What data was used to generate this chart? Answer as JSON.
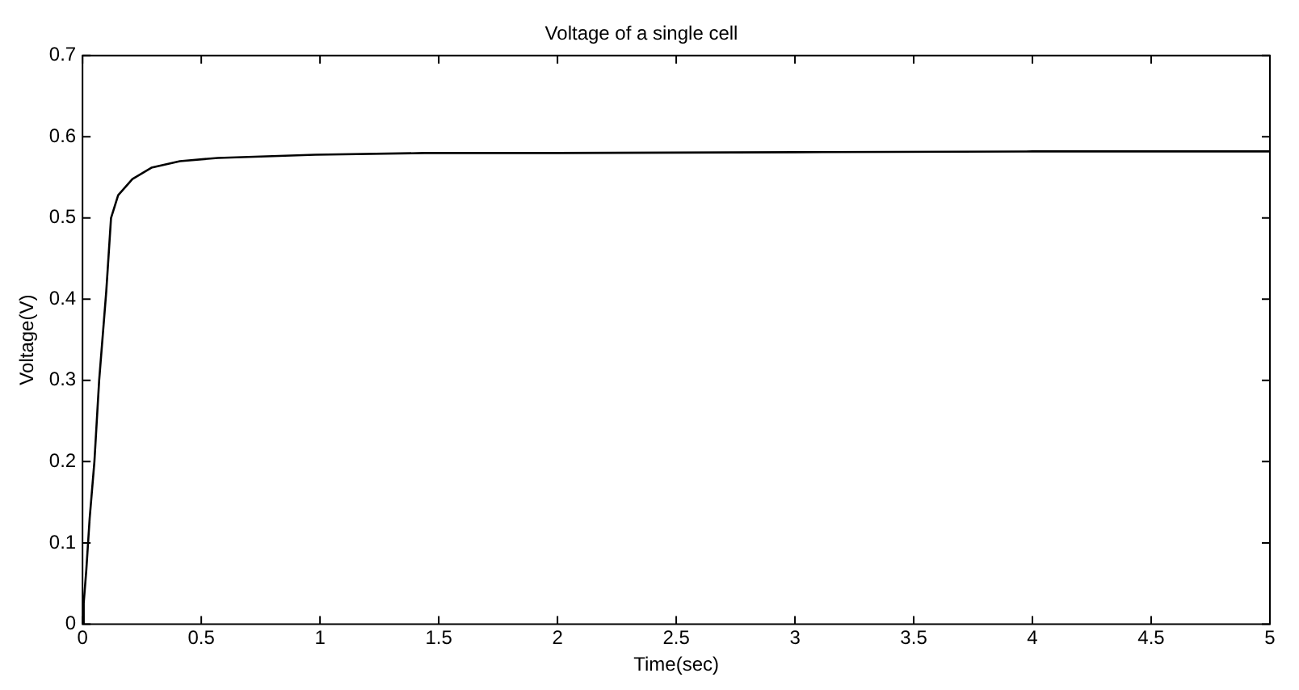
{
  "chart_data": {
    "type": "line",
    "title": "Voltage of a single cell",
    "xlabel": "Time(sec)",
    "ylabel": "Voltage(V)",
    "series": [
      {
        "color": "#000000",
        "x": [
          0,
          0.005,
          0.016,
          0.03,
          0.05,
          0.07,
          0.1,
          0.12,
          0.15,
          0.21,
          0.29,
          0.41,
          0.57,
          0.98,
          1.44,
          2,
          3,
          4,
          5
        ],
        "values": [
          0,
          0.026,
          0.067,
          0.13,
          0.2,
          0.3,
          0.41,
          0.5,
          0.528,
          0.548,
          0.562,
          0.57,
          0.574,
          0.578,
          0.58,
          0.58,
          0.581,
          0.582,
          0.582
        ]
      }
    ],
    "xlim": [
      0,
      5
    ],
    "xticks": [
      0,
      0.5,
      1,
      1.5,
      2,
      2.5,
      3,
      3.5,
      4,
      4.5,
      5
    ],
    "ylim": [
      0,
      0.7
    ],
    "yticks": [
      0,
      0.1,
      0.2,
      0.3,
      0.4,
      0.5,
      0.6,
      0.7
    ],
    "grid": false,
    "legend": false,
    "marker": "none",
    "line_style": "solid"
  }
}
